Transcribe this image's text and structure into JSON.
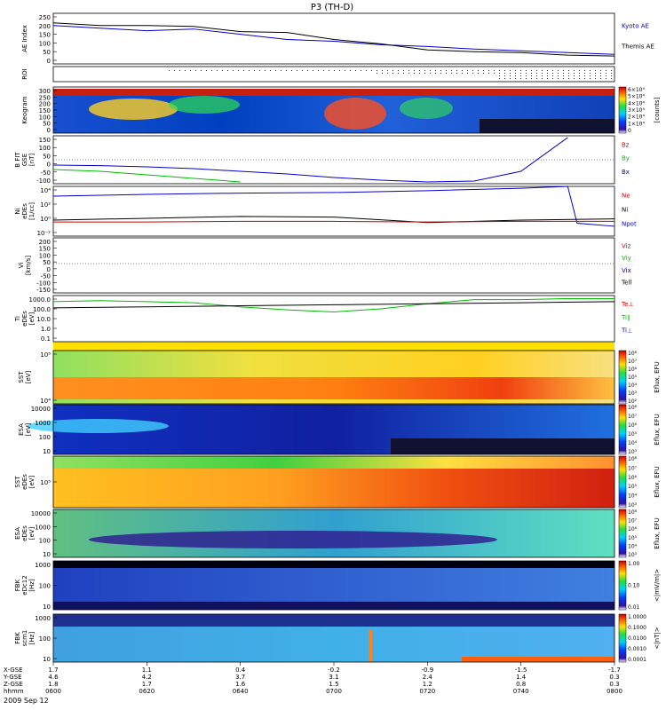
{
  "title": "P3 (TH-D)",
  "date_label": "2009 Sep 12",
  "colors": {
    "blue": "#0000cc",
    "red": "#cc0000",
    "green": "#00bb00",
    "black": "#000000"
  },
  "xaxis": {
    "row_labels": [
      "X-GSE",
      "Y-GSE",
      "Z-GSE",
      "hhmm"
    ],
    "ticks": [
      {
        "vals": [
          "1.7",
          "4.6",
          "1.8",
          "0600"
        ]
      },
      {
        "vals": [
          "1.1",
          "4.2",
          "1.7",
          "0620"
        ]
      },
      {
        "vals": [
          "0.4",
          "3.7",
          "1.6",
          "0640"
        ]
      },
      {
        "vals": [
          "-0.2",
          "3.1",
          "1.5",
          "0700"
        ]
      },
      {
        "vals": [
          "-0.9",
          "2.4",
          "1.2",
          "0720"
        ]
      },
      {
        "vals": [
          "-1.5",
          "1.4",
          "0.8",
          "0740"
        ]
      },
      {
        "vals": [
          "-1.7",
          "0.3",
          "0.3",
          "0800"
        ]
      }
    ]
  },
  "panels": [
    {
      "id": "ae",
      "ylabel": [
        "AE Index"
      ],
      "ticks": [
        "250",
        "200",
        "150",
        "100",
        "50",
        "0"
      ],
      "legend": [
        {
          "text": "Kyoto AE",
          "color": "blue"
        },
        {
          "text": "Themis AE",
          "color": "black"
        }
      ]
    },
    {
      "id": "roi",
      "ylabel": [
        "ROI"
      ],
      "ticks": [],
      "legend": []
    },
    {
      "id": "keo",
      "ylabel": [
        "Keogram"
      ],
      "ticks": [
        "300",
        "250",
        "200",
        "150",
        "100",
        "50",
        "0"
      ],
      "legend": [],
      "cbar": {
        "ticks": [
          "6×10⁴",
          "5×10⁴",
          "4×10⁴",
          "3×10⁴",
          "2×10⁴",
          "1×10⁴",
          "0"
        ],
        "label": "[counts]"
      }
    },
    {
      "id": "bfit",
      "ylabel": [
        "B FIT",
        "GSE",
        "[nT]"
      ],
      "ticks": [
        "150",
        "100",
        "50",
        "0",
        "-50",
        "-100"
      ],
      "legend": [
        {
          "text": "Bz",
          "color": "red"
        },
        {
          "text": "By",
          "color": "green"
        },
        {
          "text": "Bx",
          "color": "blue"
        }
      ]
    },
    {
      "id": "ni",
      "ylabel": [
        "Ni",
        "eDEs",
        "[1/cc]"
      ],
      "ticks": [
        "10⁴",
        "10²",
        "10⁰",
        "10⁻²"
      ],
      "legend": [
        {
          "text": "Ne",
          "color": "red"
        },
        {
          "text": "Ni",
          "color": "black"
        },
        {
          "text": "Npot",
          "color": "blue"
        }
      ]
    },
    {
      "id": "vi",
      "ylabel": [
        "Vi",
        "[km/s]"
      ],
      "ticks": [
        "200",
        "150",
        "100",
        "50",
        "0",
        "-50",
        "-100",
        "-150"
      ],
      "legend": [
        {
          "text": "Viz",
          "color": "red"
        },
        {
          "text": "Viy",
          "color": "green"
        },
        {
          "text": "Vix",
          "color": "blue"
        },
        {
          "text": "Tell",
          "color": "black"
        }
      ]
    },
    {
      "id": "ti",
      "ylabel": [
        "Ti",
        "eDEs",
        "[eV]"
      ],
      "ticks": [
        "1000.0",
        "100.0",
        "10.0",
        "1.0",
        "0.1"
      ],
      "legend": [
        {
          "text": "Te⊥",
          "color": "red"
        },
        {
          "text": "Ti∥",
          "color": "green"
        },
        {
          "text": "Ti⊥",
          "color": "blue"
        }
      ]
    },
    {
      "id": "sst1",
      "ylabel": [
        "SST",
        "[eV]"
      ],
      "ticks": [
        "10⁵",
        "10⁴"
      ],
      "legend": [],
      "cbar": {
        "ticks": [
          "10⁸",
          "10⁷",
          "10⁶",
          "10⁵",
          "10⁴",
          "10³",
          "10²"
        ],
        "label": "Eflux, EFU"
      }
    },
    {
      "id": "esa1",
      "ylabel": [
        "ESA",
        "[eV]"
      ],
      "ticks": [
        "10000",
        "1000",
        "100",
        "10"
      ],
      "legend": [],
      "cbar": {
        "ticks": [
          "10⁸",
          "10⁷",
          "10⁶",
          "10⁵",
          "10⁴",
          "10³"
        ],
        "label": "Eflux, EFU"
      }
    },
    {
      "id": "sst2",
      "ylabel": [
        "SST",
        "eDEs",
        "[eV]"
      ],
      "ticks": [
        "10⁵"
      ],
      "legend": [],
      "cbar": {
        "ticks": [
          "10⁸",
          "10⁷",
          "10⁶",
          "10⁵",
          "10⁴",
          "10³"
        ],
        "label": "Eflux, EFU"
      }
    },
    {
      "id": "esa2",
      "ylabel": [
        "ESA",
        "eDEs",
        "[eV]"
      ],
      "ticks": [
        "10000",
        "1000",
        "100",
        "10"
      ],
      "legend": [],
      "cbar": {
        "ticks": [
          "10⁸",
          "10⁷",
          "10⁶",
          "10⁵",
          "10⁴",
          "10³"
        ],
        "label": "Eflux, EFU"
      }
    },
    {
      "id": "fbk1",
      "ylabel": [
        "FBK",
        "eDc12",
        "[Hz]"
      ],
      "ticks": [
        "1000",
        "100",
        "10"
      ],
      "legend": [],
      "cbar": {
        "ticks": [
          "1.00",
          "0.10",
          "0.01"
        ],
        "label": "<|mV/m|>"
      }
    },
    {
      "id": "fbk2",
      "ylabel": [
        "FBK",
        "scm1",
        "[Hz]"
      ],
      "ticks": [
        "1000",
        "100",
        "10"
      ],
      "legend": [],
      "cbar": {
        "ticks": [
          "1.0000",
          "0.1000",
          "0.0100",
          "0.0010",
          "0.0001"
        ],
        "label": "<|nT|>"
      }
    }
  ],
  "chart_data": {
    "type": "line",
    "title": "P3 (TH-D)",
    "x_label": "hhmm",
    "x_ticks": [
      "0600",
      "0620",
      "0640",
      "0700",
      "0720",
      "0740",
      "0800"
    ],
    "series": [
      {
        "panel": "ae",
        "name": "Kyoto AE",
        "color": "blue",
        "x": [
          "0600",
          "0610",
          "0620",
          "0630",
          "0640",
          "0650",
          "0700",
          "0710",
          "0720",
          "0730",
          "0740",
          "0750",
          "0800"
        ],
        "y": [
          200,
          185,
          170,
          180,
          150,
          120,
          110,
          90,
          80,
          65,
          55,
          45,
          35
        ]
      },
      {
        "panel": "ae",
        "name": "Themis AE",
        "color": "black",
        "x": [
          "0600",
          "0610",
          "0620",
          "0630",
          "0640",
          "0650",
          "0700",
          "0710",
          "0720",
          "0730",
          "0740",
          "0750",
          "0800"
        ],
        "y": [
          215,
          200,
          200,
          195,
          165,
          160,
          120,
          95,
          60,
          50,
          45,
          30,
          25
        ]
      },
      {
        "panel": "bfit",
        "name": "Bx",
        "color": "blue",
        "x": [
          "0600",
          "0610",
          "0620",
          "0630",
          "0640",
          "0650",
          "0700",
          "0710",
          "0720",
          "0730",
          "0740",
          "0750"
        ],
        "y": [
          -5,
          -8,
          -15,
          -25,
          -40,
          -55,
          -75,
          -90,
          -100,
          -95,
          -40,
          150
        ]
      },
      {
        "panel": "bfit",
        "name": "By",
        "color": "green",
        "x": [
          "0600",
          "0610",
          "0620",
          "0630",
          "0640"
        ],
        "y": [
          -30,
          -40,
          -60,
          -80,
          -100
        ]
      },
      {
        "panel": "ni",
        "name": "Npot",
        "color": "blue",
        "x": [
          "0600",
          "0620",
          "0640",
          "0700",
          "0720",
          "0740",
          "0750",
          "0752",
          "0800"
        ],
        "y": [
          3.9,
          4.2,
          4.4,
          4.5,
          4.8,
          5.2,
          5.5,
          -0.5,
          -1.0
        ]
      },
      {
        "panel": "ni",
        "name": "Ni",
        "color": "black",
        "x": [
          "0600",
          "0620",
          "0640",
          "0700",
          "0720",
          "0740",
          "0800"
        ],
        "y": [
          0,
          0.3,
          0.6,
          0.5,
          -0.4,
          0,
          0.2
        ]
      },
      {
        "panel": "ni",
        "name": "Ne",
        "color": "red",
        "x": [
          "0600",
          "0620",
          "0640",
          "0700",
          "0720",
          "0740",
          "0800"
        ],
        "y": [
          -0.3,
          -0.3,
          -0.2,
          -0.2,
          -0.3,
          -0.2,
          -0.2
        ]
      },
      {
        "panel": "ti",
        "name": "Ti∥",
        "color": "green",
        "x": [
          "0600",
          "0610",
          "0620",
          "0630",
          "0640",
          "0650",
          "0700",
          "0710",
          "0720",
          "0730",
          "0740",
          "0750",
          "0800"
        ],
        "y": [
          2.6,
          2.7,
          2.6,
          2.5,
          2.1,
          1.8,
          1.6,
          1.9,
          2.4,
          2.8,
          2.8,
          2.9,
          2.9
        ]
      },
      {
        "panel": "ti",
        "name": "Tell",
        "color": "black",
        "x": [
          "0600",
          "0620",
          "0640",
          "0700",
          "0720",
          "0740",
          "0800"
        ],
        "y": [
          2.0,
          2.1,
          2.2,
          2.3,
          2.4,
          2.5,
          2.6
        ]
      }
    ]
  }
}
